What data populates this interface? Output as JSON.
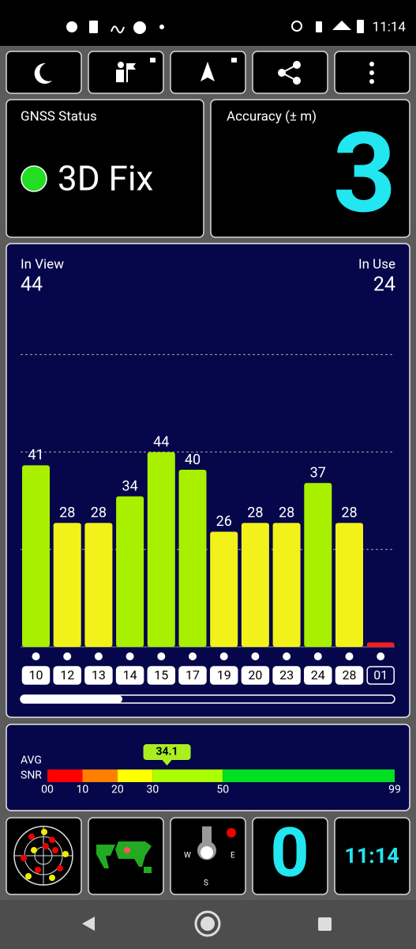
{
  "status_bar": {
    "time": "11:14"
  },
  "gnss_status": {
    "label": "GNSS Status",
    "value": "3D Fix"
  },
  "accuracy": {
    "label": "Accuracy (± m)",
    "value": 3
  },
  "satellites": {
    "in_view_label": "In View",
    "in_view": 44,
    "in_use_label": "In Use",
    "in_use": 24
  },
  "chart_data": {
    "type": "bar",
    "categories": [
      "10",
      "12",
      "13",
      "14",
      "15",
      "17",
      "19",
      "20",
      "23",
      "24",
      "28",
      "01"
    ],
    "values": [
      41,
      28,
      28,
      34,
      44,
      40,
      26,
      28,
      28,
      37,
      28,
      1
    ],
    "value_labels": [
      "41",
      "28",
      "28",
      "34",
      "44",
      "40",
      "26",
      "28",
      "28",
      "37",
      "28",
      null
    ],
    "colors": [
      "#a8f000",
      "#f2f21a",
      "#f2f21a",
      "#a8f000",
      "#a8f000",
      "#a8f000",
      "#f2f21a",
      "#f2f21a",
      "#f2f21a",
      "#a8f000",
      "#f2f21a",
      "#ff1a1a"
    ],
    "used": [
      true,
      true,
      true,
      true,
      true,
      true,
      true,
      true,
      true,
      true,
      true,
      false
    ],
    "ylim": [
      0,
      80
    ],
    "yticks": [
      22,
      44,
      66
    ],
    "grid": true
  },
  "snr": {
    "avg_label": "AVG",
    "snr_label": "SNR",
    "value": 34.1,
    "xlim": [
      0,
      99
    ],
    "xticks": [
      {
        "value": 0,
        "label": "00"
      },
      10,
      20,
      30,
      50,
      99
    ],
    "colors": [
      "#ff0000",
      "#ff8000",
      "#ffff00",
      "#aaff00",
      "#00e020"
    ]
  },
  "bottom": {
    "used_count": 0,
    "time": "11:14"
  }
}
